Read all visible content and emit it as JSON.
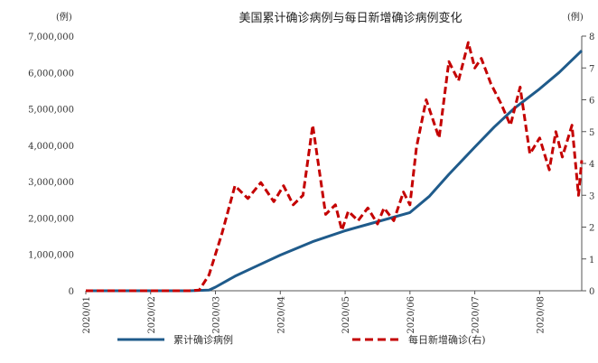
{
  "chart_data": {
    "type": "line",
    "title": "美国累计确诊病例与每日新增确诊病例变化",
    "y_unit_left": "(例)",
    "y_unit_right": "(例)",
    "ylim_left": [
      0,
      7000000
    ],
    "ylim_right": [
      0,
      80000
    ],
    "yticks_left": [
      "0",
      "1,000,000",
      "2,000,000",
      "3,000,000",
      "4,000,000",
      "5,000,000",
      "6,000,000",
      "7,000,000"
    ],
    "yticks_right": [
      "0",
      "1",
      "2",
      "3",
      "4",
      "5",
      "6",
      "7",
      "8"
    ],
    "x_categories": [
      "2020/01",
      "2020/02",
      "2020/03",
      "2020/04",
      "2020/05",
      "2020/06",
      "2020/07",
      "2020/08"
    ],
    "x_range": [
      0,
      7.65
    ],
    "legend_position": "bottom",
    "colors": {
      "cumulative": "#1f5b8b",
      "daily": "#c40000"
    },
    "series": [
      {
        "name": "累计确诊病例",
        "axis": "left",
        "x": [
          0,
          1,
          1.6,
          1.9,
          2.0,
          2.3,
          2.6,
          3.0,
          3.5,
          4.0,
          4.5,
          5.0,
          5.3,
          5.6,
          6.0,
          6.3,
          6.6,
          7.0,
          7.3,
          7.65
        ],
        "y": [
          0,
          0,
          0,
          20000,
          100000,
          400000,
          650000,
          980000,
          1350000,
          1650000,
          1900000,
          2150000,
          2600000,
          3200000,
          3950000,
          4500000,
          5000000,
          5550000,
          6000000,
          6600000
        ]
      },
      {
        "name": "每日新增确诊(右)",
        "axis": "right",
        "x": [
          0,
          1,
          1.6,
          1.75,
          1.9,
          2.1,
          2.3,
          2.5,
          2.7,
          2.9,
          3.05,
          3.2,
          3.35,
          3.5,
          3.7,
          3.85,
          3.95,
          4.05,
          4.2,
          4.35,
          4.5,
          4.6,
          4.75,
          4.9,
          5.0,
          5.1,
          5.25,
          5.45,
          5.6,
          5.75,
          5.9,
          6.0,
          6.1,
          6.25,
          6.4,
          6.55,
          6.7,
          6.85,
          7.0,
          7.15,
          7.25,
          7.35,
          7.5,
          7.6,
          7.65
        ],
        "y": [
          0,
          0,
          0,
          200,
          5000,
          18000,
          33000,
          29000,
          34000,
          28000,
          33000,
          27000,
          30000,
          52000,
          24000,
          27000,
          19000,
          25000,
          22000,
          26000,
          21000,
          26000,
          22000,
          31000,
          27000,
          45000,
          60000,
          48000,
          72000,
          66000,
          78000,
          70000,
          73000,
          65000,
          59000,
          52000,
          64000,
          43000,
          48000,
          38000,
          50000,
          42000,
          52000,
          30000,
          41000
        ]
      }
    ]
  }
}
